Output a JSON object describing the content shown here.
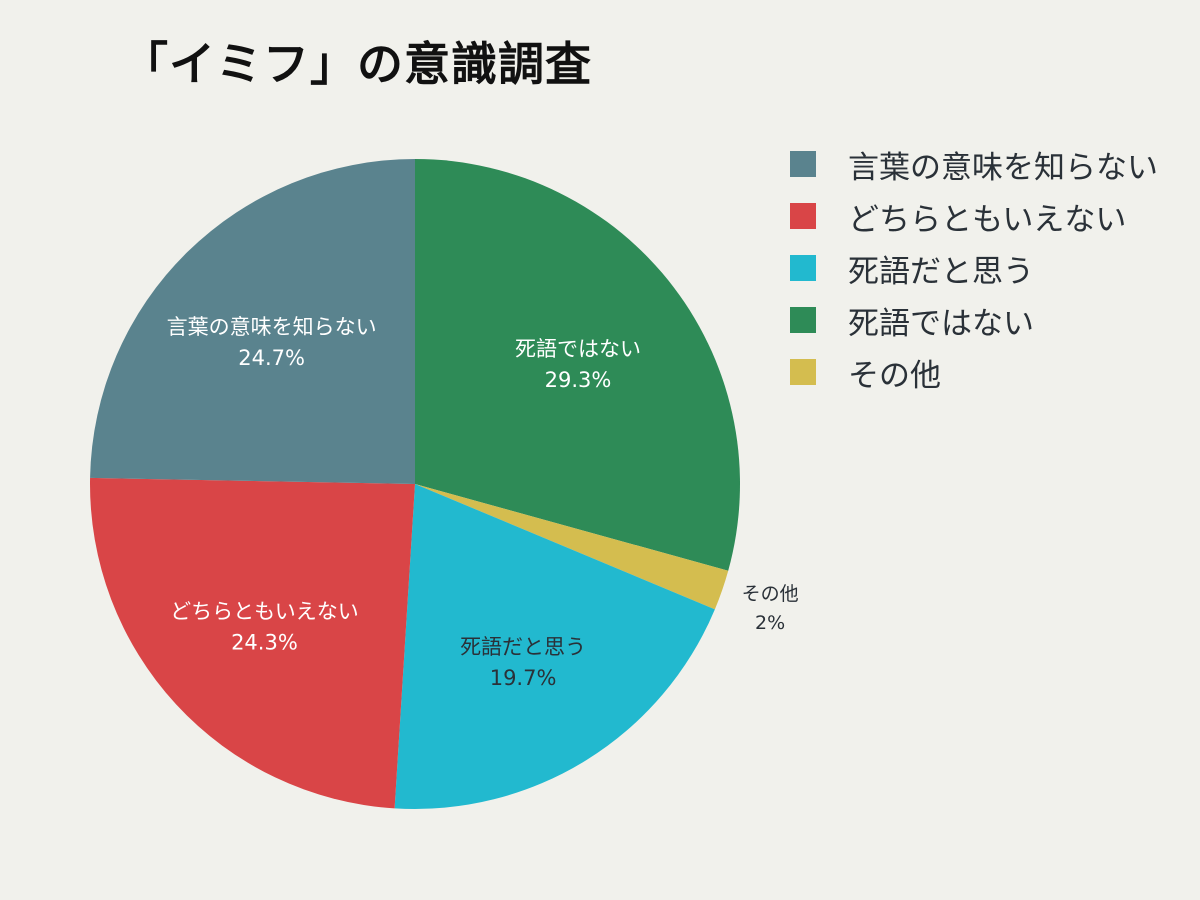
{
  "chart_data": {
    "type": "pie",
    "title": "「イミフ」の意識調査",
    "start_angle_deg": 0,
    "direction": "clockwise",
    "slices": [
      {
        "label": "死語ではない",
        "value": 29.3,
        "value_label": "29.3%",
        "color": "#2e8b57",
        "label_color": "#ffffff",
        "label_position": "inside"
      },
      {
        "label": "その他",
        "value": 2.0,
        "value_label": "2%",
        "color": "#d4bd4f",
        "label_color": "#2a3138",
        "label_position": "outside"
      },
      {
        "label": "死語だと思う",
        "value": 19.7,
        "value_label": "19.7%",
        "color": "#22b9cf",
        "label_color": "#2a3138",
        "label_position": "inside"
      },
      {
        "label": "どちらともいえない",
        "value": 24.3,
        "value_label": "24.3%",
        "color": "#d94547",
        "label_color": "#ffffff",
        "label_position": "inside"
      },
      {
        "label": "言葉の意味を知らない",
        "value": 24.7,
        "value_label": "24.7%",
        "color": "#5a838e",
        "label_color": "#ffffff",
        "label_position": "inside"
      }
    ],
    "legend": {
      "position": "right",
      "order": [
        "言葉の意味を知らない",
        "どちらともいえない",
        "死語だと思う",
        "死語ではない",
        "その他"
      ]
    }
  }
}
